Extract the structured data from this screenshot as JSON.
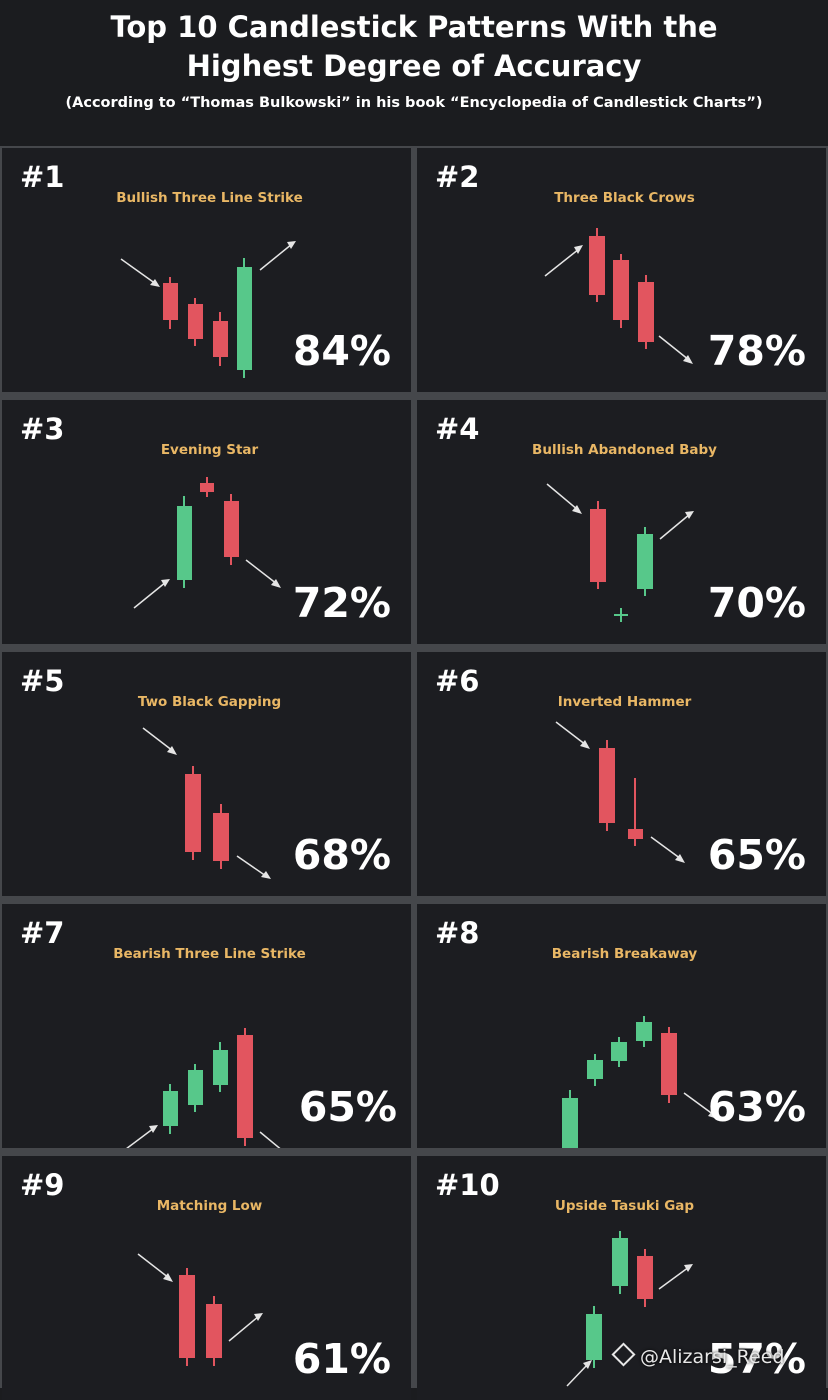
{
  "header": {
    "title_line1": "Top 10 Candlestick Patterns With the",
    "title_line2": "Highest Degree of Accuracy",
    "subtitle": "(According to “Thomas Bulkowski” in his book “Encyclopedia of Candlestick Charts”)"
  },
  "colors": {
    "bullish": "#57c88a",
    "bearish": "#e2555f",
    "title": "#e9b765",
    "arrow": "#e5e5e5"
  },
  "patterns": [
    {
      "rank": "#1",
      "name": "Bullish Three Line Strike",
      "percent": "84%"
    },
    {
      "rank": "#2",
      "name": "Three Black Crows",
      "percent": "78%"
    },
    {
      "rank": "#3",
      "name": "Evening Star",
      "percent": "72%"
    },
    {
      "rank": "#4",
      "name": "Bullish Abandoned Baby",
      "percent": "70%"
    },
    {
      "rank": "#5",
      "name": "Two Black Gapping",
      "percent": "68%"
    },
    {
      "rank": "#6",
      "name": "Inverted Hammer",
      "percent": "65%"
    },
    {
      "rank": "#7",
      "name": "Bearish Three Line Strike",
      "percent": "65%"
    },
    {
      "rank": "#8",
      "name": "Bearish Breakaway",
      "percent": "63%"
    },
    {
      "rank": "#9",
      "name": "Matching Low",
      "percent": "61%"
    },
    {
      "rank": "#10",
      "name": "Upside Tasuki Gap",
      "percent": "57%"
    }
  ],
  "watermark": {
    "text": "@Alizarsi_Reed",
    "icon": "binance-icon"
  }
}
